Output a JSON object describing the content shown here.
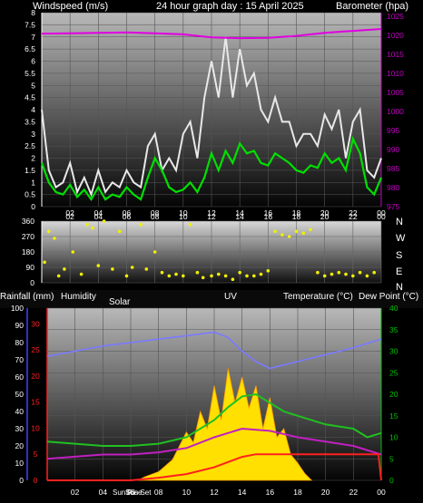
{
  "header": {
    "left": "Windspeed (m/s)",
    "center": "24 hour graph day : 15 April 2025",
    "right": "Barometer (hpa)"
  },
  "compass": [
    "N",
    "W",
    "S",
    "E",
    "N"
  ],
  "bottom_header": {
    "rain": "Rainfall (mm)",
    "humidity": "Humidity",
    "solar": "Solar",
    "uv": "UV",
    "temp": "Temperature (°C)",
    "dew": "Dew Point (°C)"
  },
  "sun_labels": [
    "Sun Rise",
    "Sun Set"
  ],
  "colors": {
    "wind_gust": "#e8e8e8",
    "wind_avg": "#00e000",
    "barometer": "#e000e0",
    "direction": "#f0f000",
    "humidity": "#7a7aff",
    "temperature": "#20c020",
    "dewpoint": "#c020c0",
    "solar": "#ffe000",
    "rain": "#ff2020",
    "left_axis_red": "#ff2020",
    "left_axis_blue": "#4040ff",
    "right_axis_green": "#00c000",
    "baro_axis": "#c000c0"
  },
  "chart_data": [
    {
      "type": "line",
      "x_ticks": [
        "02",
        "04",
        "06",
        "08",
        "10",
        "12",
        "14",
        "16",
        "18",
        "20",
        "22",
        "00"
      ],
      "y_left_ticks": [
        "0",
        "0.5",
        "1",
        "1.5",
        "2",
        "2.5",
        "3",
        "3.5",
        "4",
        "4.5",
        "5",
        "5.5",
        "6",
        "6.5",
        "7",
        "7.5",
        "8"
      ],
      "y_right_ticks": [
        "975",
        "980",
        "985",
        "990",
        "995",
        "1000",
        "1005",
        "1010",
        "1015",
        "1020",
        "1025"
      ],
      "ylim_left": [
        0,
        8
      ],
      "ylim_right": [
        975,
        1026
      ],
      "xlim": [
        0,
        24
      ],
      "series": [
        {
          "key": "gust",
          "x": [
            0,
            0.5,
            1,
            1.5,
            2,
            2.5,
            3,
            3.5,
            4,
            4.5,
            5,
            5.5,
            6,
            6.5,
            7,
            7.5,
            8,
            8.5,
            9,
            9.5,
            10,
            10.5,
            11,
            11.5,
            12,
            12.5,
            13,
            13.5,
            14,
            14.5,
            15,
            15.5,
            16,
            16.5,
            17,
            17.5,
            18,
            18.5,
            19,
            19.5,
            20,
            20.5,
            21,
            21.5,
            22,
            22.5,
            23,
            23.5,
            24
          ],
          "values": [
            4,
            1.5,
            0.8,
            1,
            1.8,
            0.6,
            1.2,
            0.5,
            1.5,
            0.6,
            1,
            0.8,
            1.5,
            1,
            0.8,
            2.5,
            3,
            1.5,
            2,
            1.5,
            3,
            3.5,
            2,
            4.5,
            6,
            4.5,
            7,
            4.5,
            6.5,
            5,
            5.5,
            4,
            3.5,
            4.5,
            3.5,
            3.5,
            2.5,
            3,
            3,
            2.5,
            3.8,
            3.2,
            4,
            2,
            3.5,
            4,
            1.5,
            1.2,
            2
          ]
        },
        {
          "key": "average",
          "x": [
            0,
            0.5,
            1,
            1.5,
            2,
            2.5,
            3,
            3.5,
            4,
            4.5,
            5,
            5.5,
            6,
            6.5,
            7,
            7.5,
            8,
            8.5,
            9,
            9.5,
            10,
            10.5,
            11,
            11.5,
            12,
            12.5,
            13,
            13.5,
            14,
            14.5,
            15,
            15.5,
            16,
            16.5,
            17,
            17.5,
            18,
            18.5,
            19,
            19.5,
            20,
            20.5,
            21,
            21.5,
            22,
            22.5,
            23,
            23.5,
            24
          ],
          "values": [
            1.8,
            1,
            0.6,
            0.5,
            0.9,
            0.4,
            0.7,
            0.3,
            0.8,
            0.3,
            0.5,
            0.4,
            0.8,
            0.5,
            0.3,
            1.2,
            2,
            1.5,
            0.8,
            0.6,
            0.7,
            1,
            0.6,
            1.2,
            2.2,
            1.5,
            2.3,
            1.8,
            2.6,
            2.2,
            2.3,
            1.8,
            1.7,
            2.2,
            2,
            1.8,
            1.5,
            1.4,
            1.7,
            1.6,
            2.2,
            1.8,
            2,
            1.5,
            2.8,
            2.2,
            0.8,
            0.5,
            1.2
          ]
        },
        {
          "key": "barometer",
          "x": [
            0,
            2,
            4,
            6,
            8,
            10,
            12,
            14,
            16,
            18,
            20,
            22,
            24
          ],
          "values": [
            1020.5,
            1020.6,
            1020.7,
            1020.8,
            1020.6,
            1020.3,
            1019.5,
            1019.3,
            1019.4,
            1019.9,
            1020.7,
            1021.2,
            1021.7
          ]
        }
      ]
    },
    {
      "type": "scatter",
      "x_ticks": [
        "02",
        "04",
        "06",
        "08",
        "10",
        "12",
        "14",
        "16",
        "18",
        "20",
        "22",
        "00"
      ],
      "y_ticks": [
        "0",
        "90",
        "180",
        "270",
        "360"
      ],
      "ylim": [
        0,
        360
      ],
      "xlim": [
        0,
        24
      ],
      "x": [
        0.2,
        0.5,
        0.9,
        1.2,
        1.6,
        2.2,
        2.8,
        3.2,
        3.6,
        4,
        4.4,
        5,
        5.5,
        6,
        6.4,
        7,
        7.4,
        8,
        8.5,
        9,
        9.5,
        10,
        10.5,
        11,
        11.4,
        12,
        12.5,
        13,
        13.5,
        14,
        14.5,
        15,
        15.5,
        16,
        16.5,
        17,
        17.5,
        18,
        18.5,
        19,
        19.5,
        20,
        20.5,
        21,
        21.5,
        22,
        22.5,
        23,
        23.5
      ],
      "values": [
        120,
        300,
        260,
        40,
        80,
        180,
        50,
        340,
        320,
        100,
        360,
        80,
        300,
        40,
        90,
        340,
        80,
        180,
        60,
        40,
        50,
        40,
        340,
        60,
        30,
        40,
        50,
        40,
        20,
        60,
        40,
        40,
        50,
        70,
        300,
        280,
        270,
        300,
        290,
        310,
        60,
        40,
        50,
        60,
        50,
        40,
        60,
        40,
        60
      ]
    },
    {
      "type": "line",
      "x_ticks": [
        "02",
        "04",
        "06",
        "08",
        "10",
        "12",
        "14",
        "16",
        "18",
        "20",
        "22",
        "00"
      ],
      "y_rain_ticks": [
        "0",
        "5",
        "10",
        "15",
        "20",
        "25",
        "30"
      ],
      "y_humidity_ticks": [
        "0",
        "10",
        "20",
        "30",
        "40",
        "50",
        "60",
        "70",
        "80",
        "90",
        "100"
      ],
      "y_temp_ticks": [
        "0",
        "5",
        "10",
        "15",
        "20",
        "25",
        "30",
        "35",
        "40"
      ],
      "xlim": [
        0,
        24
      ],
      "ylim_humidity": [
        0,
        100
      ],
      "ylim_temp": [
        0,
        40
      ],
      "ylim_rain": [
        0,
        33
      ],
      "series": [
        {
          "key": "humidity",
          "x": [
            0,
            2,
            4,
            6,
            8,
            10,
            11,
            12,
            13,
            14,
            15,
            16,
            17,
            18,
            20,
            22,
            24
          ],
          "values": [
            72,
            75,
            78,
            80,
            82,
            84,
            85,
            86,
            83,
            75,
            69,
            65,
            67,
            69,
            73,
            77,
            82
          ]
        },
        {
          "key": "temperature",
          "x": [
            0,
            2,
            4,
            6,
            8,
            10,
            12,
            13,
            14,
            15,
            16,
            17,
            18,
            20,
            22,
            23,
            24
          ],
          "values": [
            9,
            8.5,
            8,
            8,
            8.5,
            10,
            14,
            17,
            19.5,
            20,
            18,
            16,
            15,
            13,
            12,
            10,
            11
          ]
        },
        {
          "key": "dewpoint",
          "x": [
            0,
            2,
            4,
            6,
            8,
            10,
            12,
            14,
            16,
            18,
            20,
            22,
            24
          ],
          "values": [
            5,
            5.5,
            6,
            6,
            6.5,
            7.5,
            10,
            12,
            11.5,
            10,
            9,
            8,
            6
          ]
        },
        {
          "key": "rain",
          "x": [
            0,
            6,
            8,
            10,
            12,
            13,
            14,
            15,
            16,
            18,
            20,
            22,
            23.8,
            24
          ],
          "values": [
            0,
            0,
            0.5,
            1.2,
            2.5,
            3.5,
            4.5,
            5,
            5,
            5,
            5,
            5,
            5,
            0
          ]
        },
        {
          "key": "solar",
          "x": [
            6.5,
            7,
            8,
            9,
            9.5,
            10,
            10.5,
            11,
            11.5,
            12,
            12.5,
            13,
            13.5,
            14,
            14.5,
            15,
            15.5,
            16,
            16.5,
            17,
            17.5,
            18,
            18.5,
            19
          ],
          "values": [
            0,
            2,
            5,
            12,
            20,
            28,
            22,
            40,
            30,
            55,
            35,
            65,
            45,
            60,
            42,
            55,
            30,
            48,
            25,
            30,
            15,
            10,
            4,
            0
          ]
        }
      ]
    }
  ]
}
